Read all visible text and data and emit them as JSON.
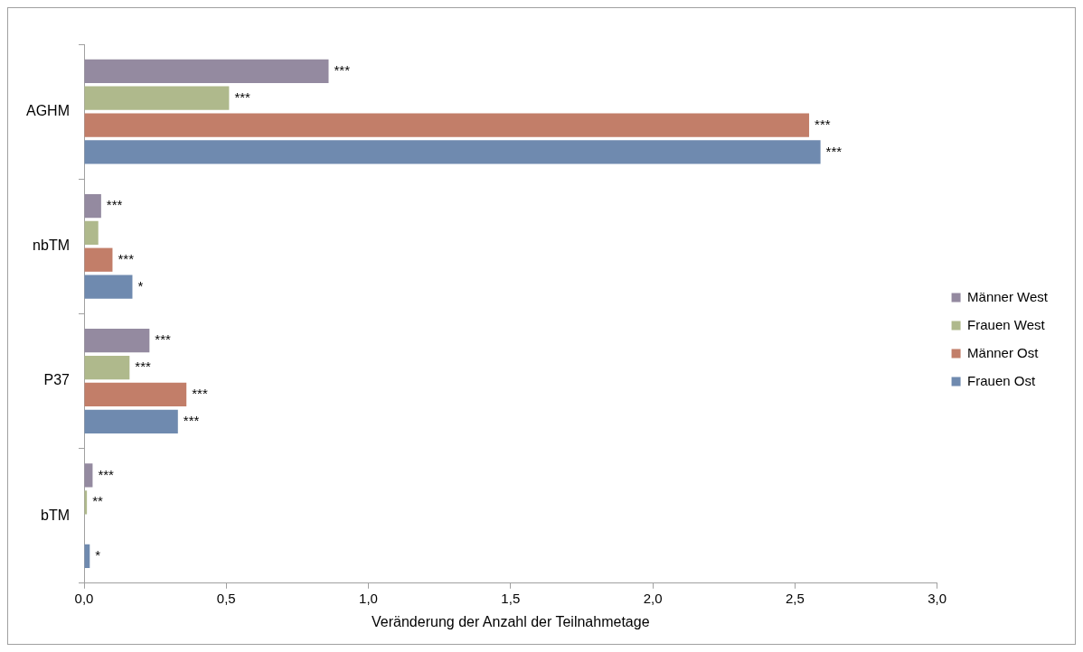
{
  "chart_data": {
    "type": "bar",
    "orientation": "horizontal",
    "xlabel": "Veränderung der Anzahl der Teilnahmetage",
    "categories": [
      "AGHM",
      "nbTM",
      "P37",
      "bTM"
    ],
    "xlim": [
      0,
      3
    ],
    "xticks": [
      {
        "value": 0,
        "label": "0,0"
      },
      {
        "value": 0.5,
        "label": "0,5"
      },
      {
        "value": 1,
        "label": "1,0"
      },
      {
        "value": 1.5,
        "label": "1,5"
      },
      {
        "value": 2,
        "label": "2,0"
      },
      {
        "value": 2.5,
        "label": "2,5"
      },
      {
        "value": 3,
        "label": "3,0"
      }
    ],
    "grid": false,
    "legend": "right",
    "series": [
      {
        "name": "Männer West",
        "color": "#948aa0",
        "values": [
          0.86,
          0.06,
          0.23,
          0.03
        ],
        "value_labels": [
          "***",
          "***",
          "***",
          "***"
        ]
      },
      {
        "name": "Frauen West",
        "color": "#afb98c",
        "values": [
          0.51,
          0.05,
          0.16,
          0.01
        ],
        "value_labels": [
          "***",
          null,
          "***",
          "**"
        ]
      },
      {
        "name": "Männer Ost",
        "color": "#c27e69",
        "values": [
          2.55,
          0.1,
          0.36,
          0
        ],
        "value_labels": [
          "***",
          "***",
          "***",
          null
        ]
      },
      {
        "name": "Frauen Ost",
        "color": "#6f8aaf",
        "values": [
          2.59,
          0.17,
          0.33,
          0.02
        ],
        "value_labels": [
          "***",
          "*",
          "***",
          "*"
        ]
      }
    ]
  }
}
